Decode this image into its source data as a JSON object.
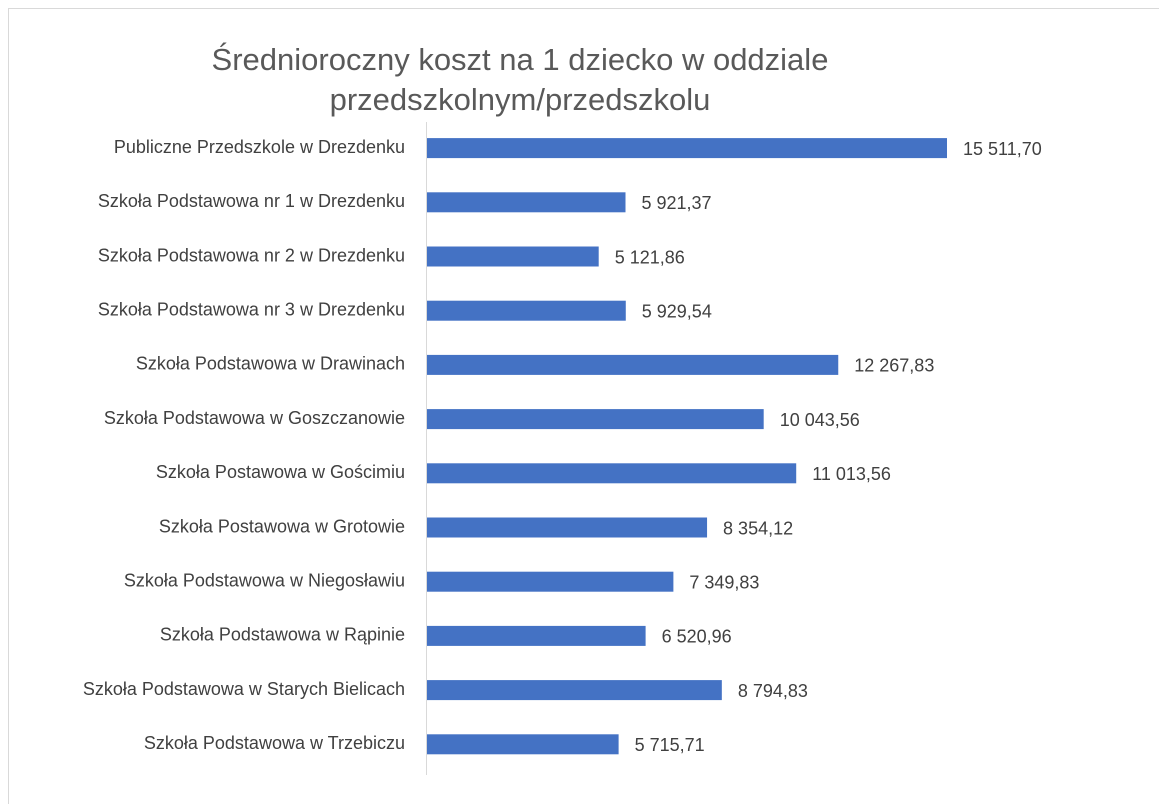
{
  "chart_data": {
    "type": "bar",
    "orientation": "horizontal",
    "title": "Średnioroczny koszt na 1 dziecko w oddziale przedszkolnym/przedszkolu",
    "categories": [
      "Publiczne Przedszkole w Drezdenku",
      "Szkoła Podstawowa nr 1 w Drezdenku",
      "Szkoła Podstawowa nr 2 w Drezdenku",
      "Szkoła Podstawowa nr 3 w Drezdenku",
      "Szkoła Podstawowa w Drawinach",
      "Szkoła Podstawowa w Goszczanowie",
      "Szkoła Postawowa w Gościmiu",
      "Szkoła Postawowa w Grotowie",
      "Szkoła Podstawowa w Niegosławiu",
      "Szkoła Podstawowa w Rąpinie",
      "Szkoła Podstawowa w Starych Bielicach",
      "Szkoła Podstawowa w Trzebiczu"
    ],
    "values": [
      15511.7,
      5921.37,
      5121.86,
      5929.54,
      12267.83,
      10043.56,
      11013.56,
      8354.12,
      7349.83,
      6520.96,
      8794.83,
      5715.71
    ],
    "value_labels": [
      "15 511,70",
      "5 921,37",
      "5 121,86",
      "5 929,54",
      "12 267,83",
      "10 043,56",
      "11 013,56",
      "8 354,12",
      "7 349,83",
      "6 520,96",
      "8 794,83",
      "5 715,71"
    ],
    "color": "#4472c4"
  }
}
